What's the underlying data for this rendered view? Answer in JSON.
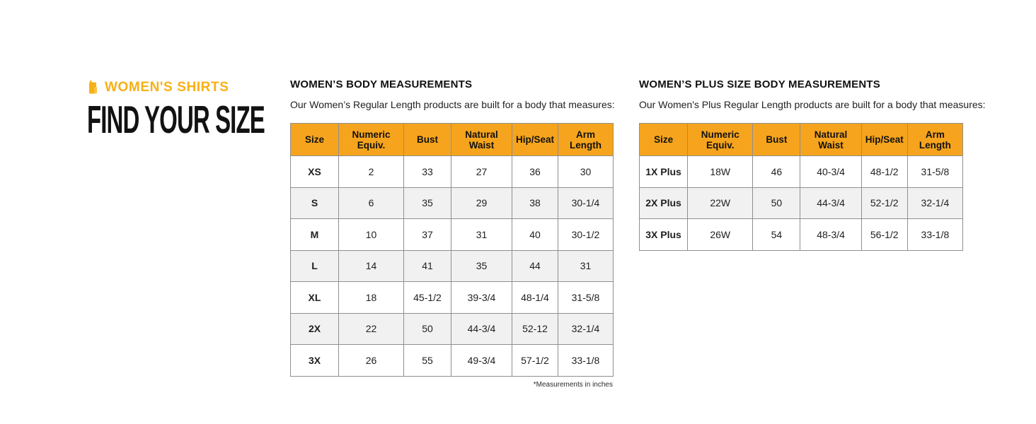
{
  "brand": {
    "eyebrow": "WOMEN'S SHIRTS",
    "title": "FIND YOUR SIZE"
  },
  "colors": {
    "accent": "#F6A41D",
    "eyebrow_text": "#F7B015",
    "row_alt": "#F1F1F1",
    "border": "#8F8F8F"
  },
  "tables": {
    "regular": {
      "heading": "WOMEN’S BODY MEASUREMENTS",
      "subtitle": "Our Women’s Regular Length products are built for a body that measures:",
      "columns": [
        "Size",
        "Numeric Equiv.",
        "Bust",
        "Natural Waist",
        "Hip/Seat",
        "Arm Length"
      ],
      "rows": [
        [
          "XS",
          "2",
          "33",
          "27",
          "36",
          "30"
        ],
        [
          "S",
          "6",
          "35",
          "29",
          "38",
          "30-1/4"
        ],
        [
          "M",
          "10",
          "37",
          "31",
          "40",
          "30-1/2"
        ],
        [
          "L",
          "14",
          "41",
          "35",
          "44",
          "31"
        ],
        [
          "XL",
          "18",
          "45-1/2",
          "39-3/4",
          "48-1/4",
          "31-5/8"
        ],
        [
          "2X",
          "22",
          "50",
          "44-3/4",
          "52-12",
          "32-1/4"
        ],
        [
          "3X",
          "26",
          "55",
          "49-3/4",
          "57-1/2",
          "33-1/8"
        ]
      ],
      "footnote": "*Measurements in inches"
    },
    "plus": {
      "heading": "WOMEN’S PLUS SIZE BODY MEASUREMENTS",
      "subtitle": "Our Women's Plus Regular Length products are built for a body that measures:",
      "columns": [
        "Size",
        "Numeric Equiv.",
        "Bust",
        "Natural Waist",
        "Hip/Seat",
        "Arm Length"
      ],
      "rows": [
        [
          "1X Plus",
          "18W",
          "46",
          "40-3/4",
          "48-1/2",
          "31-5/8"
        ],
        [
          "2X Plus",
          "22W",
          "50",
          "44-3/4",
          "52-1/2",
          "32-1/4"
        ],
        [
          "3X Plus",
          "26W",
          "54",
          "48-3/4",
          "56-1/2",
          "33-1/8"
        ]
      ]
    }
  }
}
